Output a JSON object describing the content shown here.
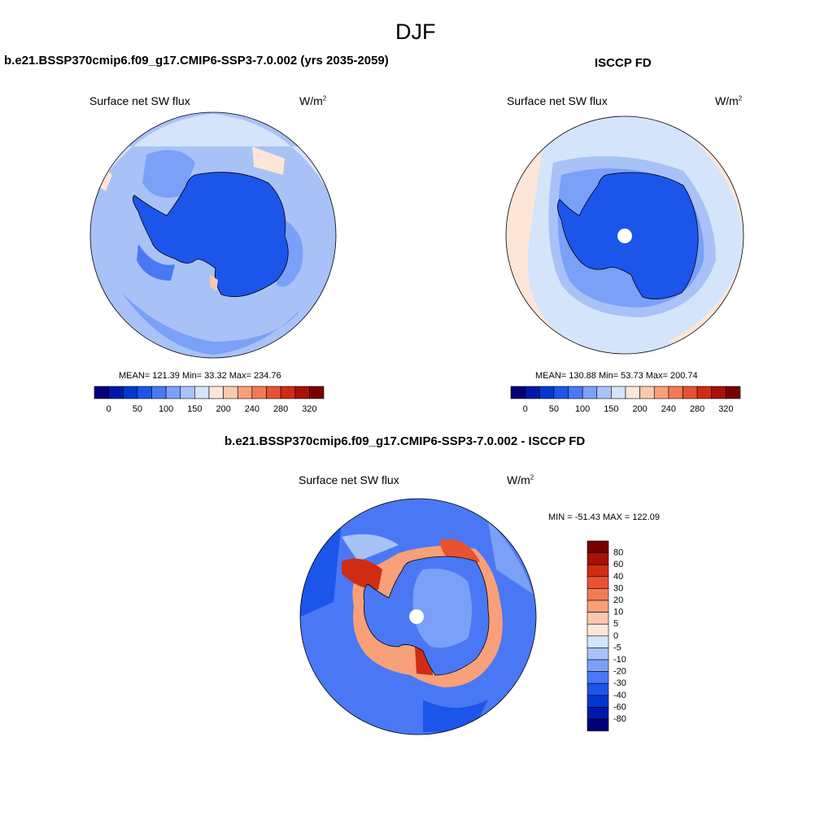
{
  "figure": {
    "title": "DJF"
  },
  "panels": {
    "model": {
      "header": "b.e21.BSSP370cmip6.f09_g17.CMIP6-SSP3-7.0.002 (yrs 2035-2059)",
      "variable": "Surface net SW flux",
      "units": "W/m",
      "units_sup": "2",
      "stats": "MEAN= 121.39  Min=  33.32  Max= 234.76"
    },
    "obs": {
      "header": "ISCCP FD",
      "variable": "Surface net SW flux",
      "units": "W/m",
      "units_sup": "2",
      "stats": "MEAN= 130.88  Min=  53.73  Max= 200.74"
    },
    "diff": {
      "header": "b.e21.BSSP370cmip6.f09_g17.CMIP6-SSP3-7.0.002 - ISCCP FD",
      "variable": "Surface net SW flux",
      "units": "W/m",
      "units_sup": "2",
      "stats": "MIN = -51.43 MAX = 122.09"
    }
  },
  "chart_data": [
    {
      "type": "heatmap",
      "title": "Surface net SW flux",
      "projection": "south-polar-stereographic",
      "units": "W/m2",
      "stats": {
        "mean": 121.39,
        "min": 33.32,
        "max": 234.76
      },
      "colorbar": {
        "orientation": "horizontal",
        "levels": [
          0,
          25,
          50,
          75,
          100,
          125,
          150,
          175,
          200,
          220,
          240,
          260,
          280,
          300,
          320
        ],
        "tick_labels": [
          "0",
          "50",
          "100",
          "150",
          "200",
          "240",
          "280",
          "320"
        ],
        "colors": [
          "#000077",
          "#0018a8",
          "#0038d0",
          "#1c55ea",
          "#4a78f5",
          "#7aa0f7",
          "#a8c2f7",
          "#d4e4fa",
          "#fde6d8",
          "#fbc8b0",
          "#f7a07a",
          "#f27a52",
          "#e85230",
          "#d02c14",
          "#a81008",
          "#780000"
        ]
      }
    },
    {
      "type": "heatmap",
      "title": "Surface net SW flux",
      "projection": "south-polar-stereographic",
      "units": "W/m2",
      "stats": {
        "mean": 130.88,
        "min": 53.73,
        "max": 200.74
      },
      "colorbar": {
        "orientation": "horizontal",
        "levels": [
          0,
          25,
          50,
          75,
          100,
          125,
          150,
          175,
          200,
          220,
          240,
          260,
          280,
          300,
          320
        ],
        "tick_labels": [
          "0",
          "50",
          "100",
          "150",
          "200",
          "240",
          "280",
          "320"
        ],
        "colors": [
          "#000077",
          "#0018a8",
          "#0038d0",
          "#1c55ea",
          "#4a78f5",
          "#7aa0f7",
          "#a8c2f7",
          "#d4e4fa",
          "#fde6d8",
          "#fbc8b0",
          "#f7a07a",
          "#f27a52",
          "#e85230",
          "#d02c14",
          "#a81008",
          "#780000"
        ]
      }
    },
    {
      "type": "heatmap",
      "title": "Surface net SW flux",
      "projection": "south-polar-stereographic",
      "units": "W/m2",
      "stats": {
        "min": -51.43,
        "max": 122.09
      },
      "colorbar": {
        "orientation": "vertical",
        "tick_labels": [
          "80",
          "60",
          "40",
          "30",
          "20",
          "10",
          "5",
          "0",
          "-5",
          "-10",
          "-20",
          "-30",
          "-40",
          "-60",
          "-80"
        ],
        "colors": [
          "#780000",
          "#a81008",
          "#d02c14",
          "#e85230",
          "#f27a52",
          "#f7a07a",
          "#fbc8b0",
          "#fde6d8",
          "#d4e4fa",
          "#a8c2f7",
          "#7aa0f7",
          "#4a78f5",
          "#1c55ea",
          "#0038d0",
          "#0018a8",
          "#000077"
        ]
      }
    }
  ]
}
